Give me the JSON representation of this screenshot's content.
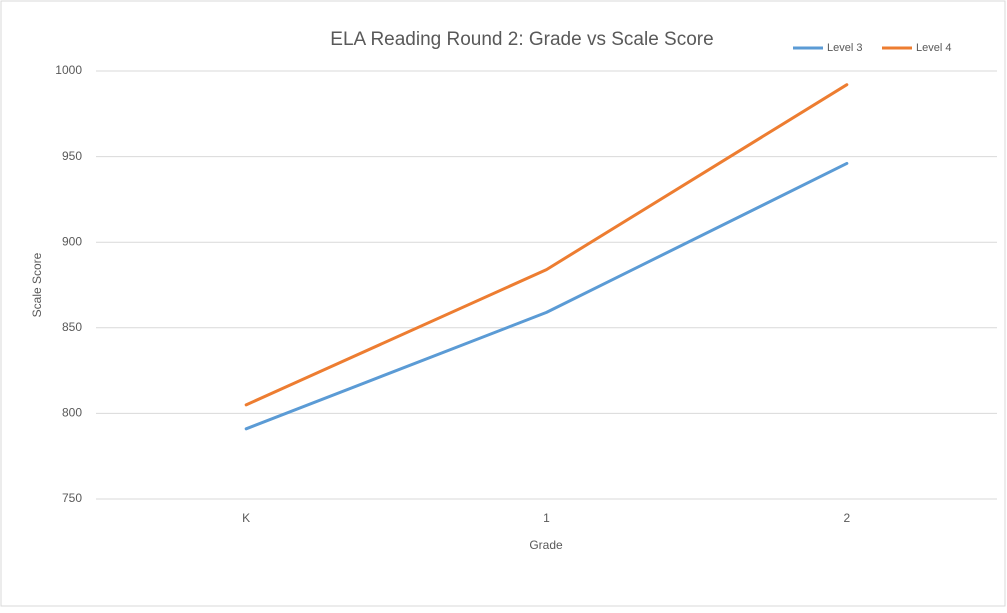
{
  "chart_data": {
    "type": "line",
    "title": "ELA Reading Round 2: Grade vs Scale Score",
    "x_label": "Grade",
    "y_label": "Scale Score",
    "categories": [
      "K",
      "1",
      "2"
    ],
    "series": [
      {
        "name": "Level 3",
        "color": "#5b9bd5",
        "values": [
          791,
          859,
          946
        ]
      },
      {
        "name": "Level 4",
        "color": "#ed7d31",
        "values": [
          805,
          884,
          992
        ]
      }
    ],
    "ylim": [
      750,
      1000
    ],
    "yticks": [
      750,
      800,
      850,
      900,
      950,
      1000
    ],
    "grid": true,
    "legend": "top-right"
  }
}
